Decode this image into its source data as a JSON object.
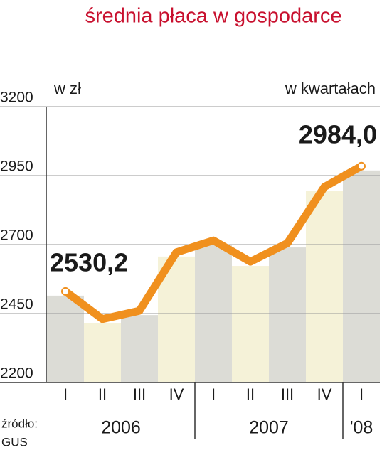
{
  "chart_data": {
    "type": "line",
    "title": "średnia płaca w gospodarce",
    "y_unit": "w zł",
    "x_unit": "w kwartałach",
    "categories": [
      "I",
      "II",
      "III",
      "IV",
      "I",
      "II",
      "III",
      "IV",
      "I"
    ],
    "groups": [
      {
        "label": "2006",
        "count": 4
      },
      {
        "label": "2007",
        "count": 4
      },
      {
        "label": "'08",
        "count": 1
      }
    ],
    "values": [
      2530.2,
      2430,
      2460,
      2672,
      2715,
      2638,
      2705,
      2909,
      2984.0
    ],
    "value_labels": [
      "2530,2",
      null,
      null,
      null,
      null,
      null,
      null,
      null,
      "2984,0"
    ],
    "color": "#f0901e",
    "band_colors": [
      "#dcdcd6",
      "#f5f2d8"
    ],
    "ylim": [
      2200,
      3200
    ],
    "yticks": [
      2200,
      2450,
      2700,
      2950,
      3200
    ],
    "grid": true,
    "source": [
      "źródło:",
      "GUS"
    ]
  }
}
